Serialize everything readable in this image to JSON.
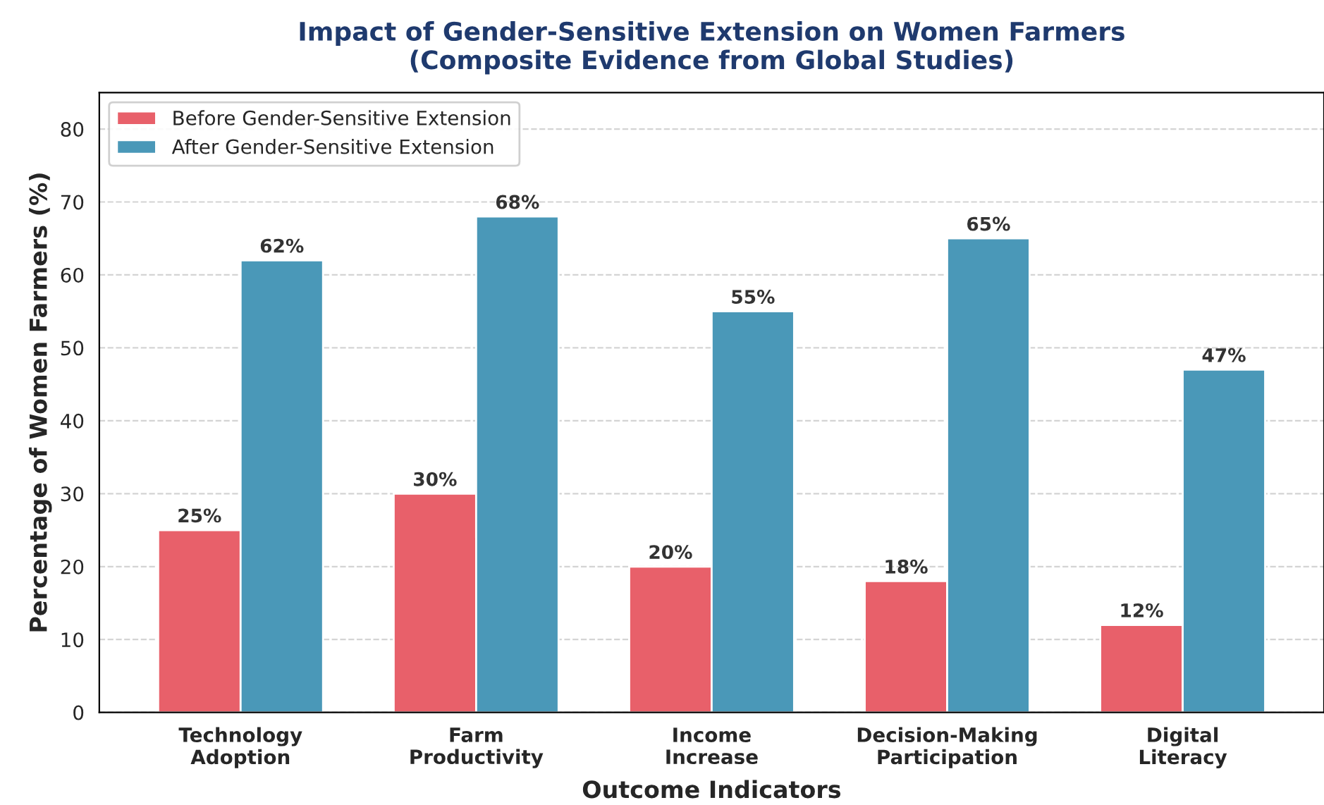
{
  "chart_data": {
    "type": "bar",
    "title": "Impact of Gender-Sensitive Extension on Women Farmers\n(Composite Evidence from Global Studies)",
    "xlabel": "Outcome Indicators",
    "ylabel": "Percentage of Women Farmers (%)",
    "categories": [
      "Technology\nAdoption",
      "Farm\nProductivity",
      "Income\nIncrease",
      "Decision-Making\nParticipation",
      "Digital\nLiteracy"
    ],
    "series": [
      {
        "name": "Before Gender-Sensitive Extension",
        "color": "#e8606a",
        "values": [
          25,
          30,
          20,
          18,
          12
        ],
        "value_labels": [
          "25%",
          "30%",
          "20%",
          "18%",
          "12%"
        ]
      },
      {
        "name": "After Gender-Sensitive Extension",
        "color": "#4a98b8",
        "values": [
          62,
          68,
          55,
          65,
          47
        ],
        "value_labels": [
          "62%",
          "68%",
          "55%",
          "65%",
          "47%"
        ]
      }
    ],
    "ylim": [
      0,
      85
    ],
    "yticks": [
      0,
      10,
      20,
      30,
      40,
      50,
      60,
      70,
      80
    ],
    "grid": "y",
    "legend": "top left"
  }
}
